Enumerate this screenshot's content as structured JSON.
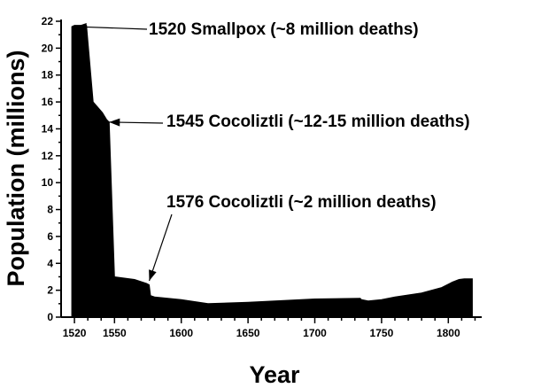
{
  "chart_data": {
    "type": "area",
    "title": "",
    "xlabel": "Year",
    "ylabel": "Population (millions)",
    "xlim": [
      1510,
      1825
    ],
    "ylim": [
      0,
      22
    ],
    "xticks": [
      1520,
      1550,
      1600,
      1650,
      1700,
      1750,
      1800
    ],
    "yticks": [
      0,
      2,
      4,
      6,
      8,
      10,
      12,
      14,
      16,
      18,
      20,
      22
    ],
    "grid": false,
    "series": [
      {
        "x": [
          1518,
          1520,
          1529,
          1534,
          1541,
          1544,
          1546,
          1550,
          1565,
          1574,
          1576,
          1577,
          1580,
          1600,
          1620,
          1650,
          1700,
          1734,
          1735,
          1740,
          1750,
          1760,
          1780,
          1795,
          1803,
          1808,
          1812,
          1818
        ],
        "values": [
          21.6,
          21.7,
          21.7,
          16,
          15.2,
          14.7,
          14.5,
          3.0,
          2.8,
          2.5,
          2.4,
          1.6,
          1.5,
          1.3,
          1.0,
          1.1,
          1.35,
          1.4,
          1.3,
          1.2,
          1.3,
          1.5,
          1.8,
          2.2,
          2.6,
          2.8,
          2.85,
          2.85
        ],
        "color": "#000000"
      }
    ],
    "annotations": [
      {
        "text": "1520  Smallpox (~8 million deaths)",
        "x": 1521,
        "y": 21.6
      },
      {
        "text": "1545  Cocoliztli (~12-15 million deaths)",
        "x": 1546,
        "y": 14.5
      },
      {
        "text": "1576  Cocoliztli (~2 million deaths)",
        "x": 1576,
        "y": 2.7
      }
    ]
  }
}
